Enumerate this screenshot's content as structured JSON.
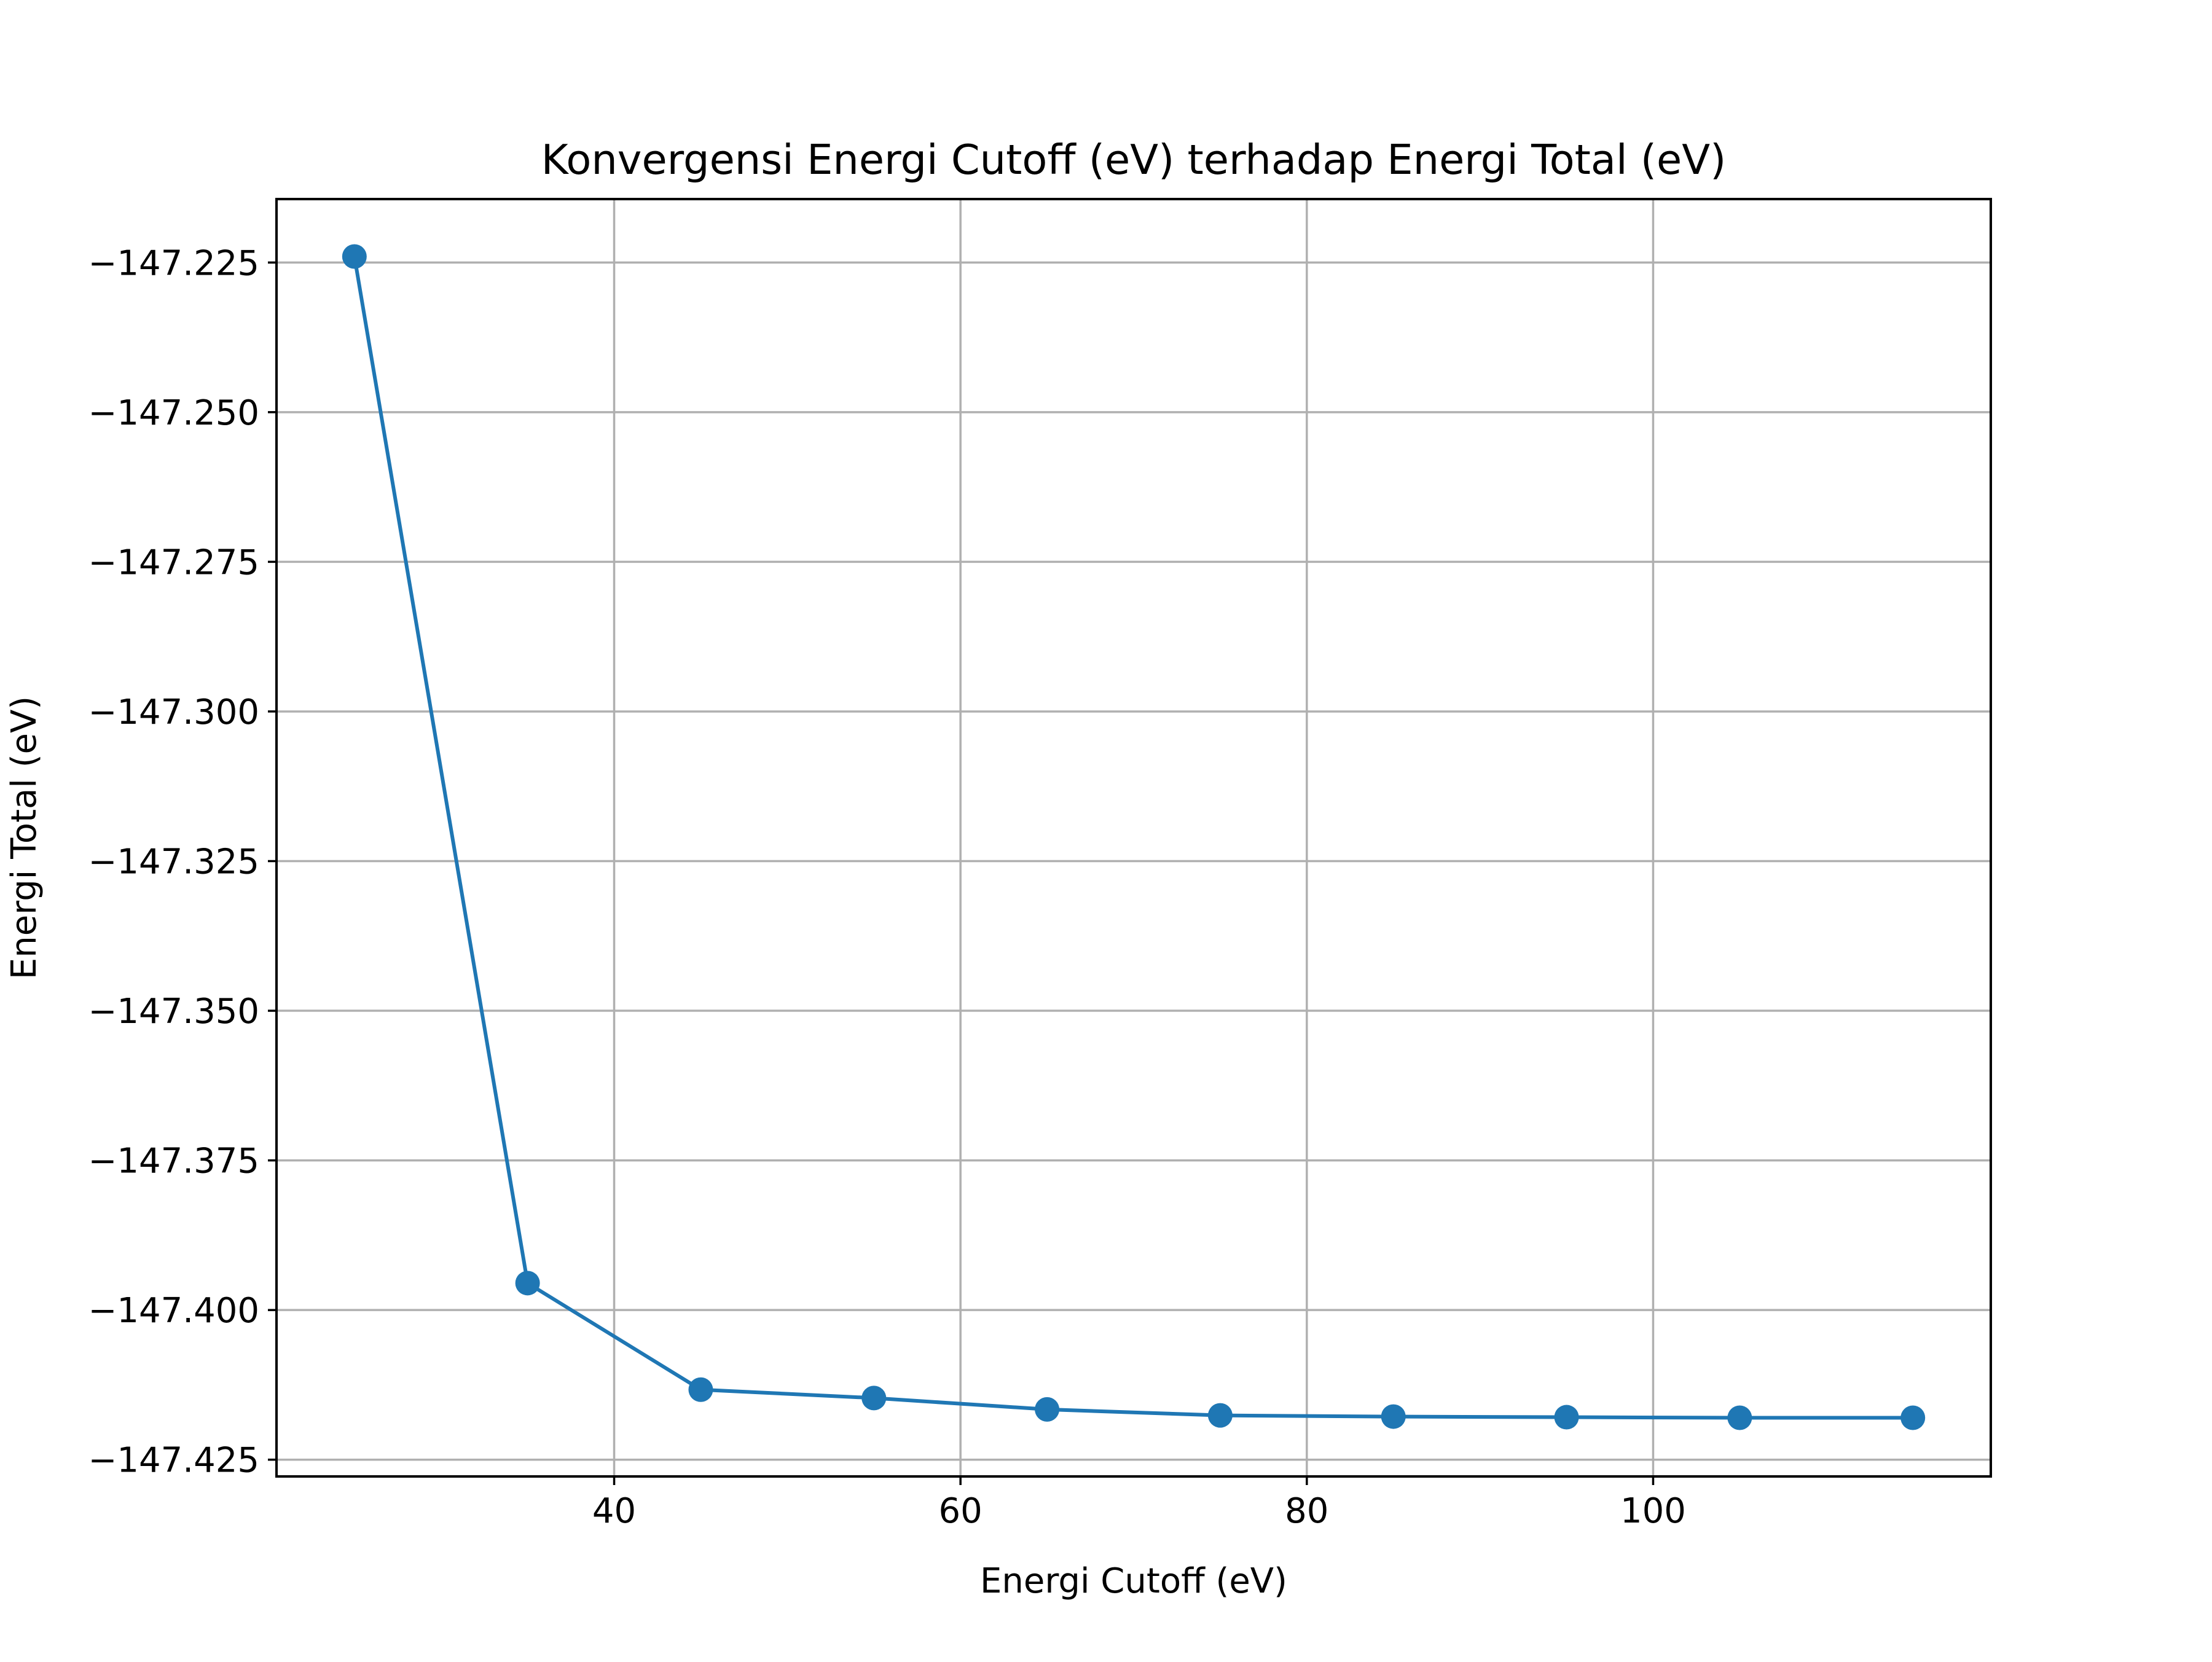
{
  "chart_data": {
    "type": "line",
    "title": "Konvergensi Energi Cutoff (eV) terhadap Energi Total (eV)",
    "xlabel": "Energi Cutoff (eV)",
    "ylabel": "Energi Total (eV)",
    "xlim": [
      20.5,
      119.5
    ],
    "ylim": [
      -147.4278,
      -147.2144
    ],
    "xticks": [
      40,
      60,
      80,
      100
    ],
    "xtick_labels": [
      "40",
      "60",
      "80",
      "100"
    ],
    "yticks": [
      -147.225,
      -147.25,
      -147.275,
      -147.3,
      -147.325,
      -147.35,
      -147.375,
      -147.4,
      -147.425
    ],
    "ytick_labels": [
      "−147.225",
      "−147.250",
      "−147.275",
      "−147.300",
      "−147.325",
      "−147.350",
      "−147.375",
      "−147.400",
      "−147.425"
    ],
    "grid": true,
    "marker": "circle",
    "color": "#1f77b4",
    "series": [
      {
        "x": [
          25,
          35,
          45,
          55,
          65,
          75,
          85,
          95,
          105,
          115
        ],
        "y": [
          -147.224,
          -147.3955,
          -147.4133,
          -147.4147,
          -147.4166,
          -147.4176,
          -147.4178,
          -147.4179,
          -147.418,
          -147.418
        ]
      }
    ]
  }
}
